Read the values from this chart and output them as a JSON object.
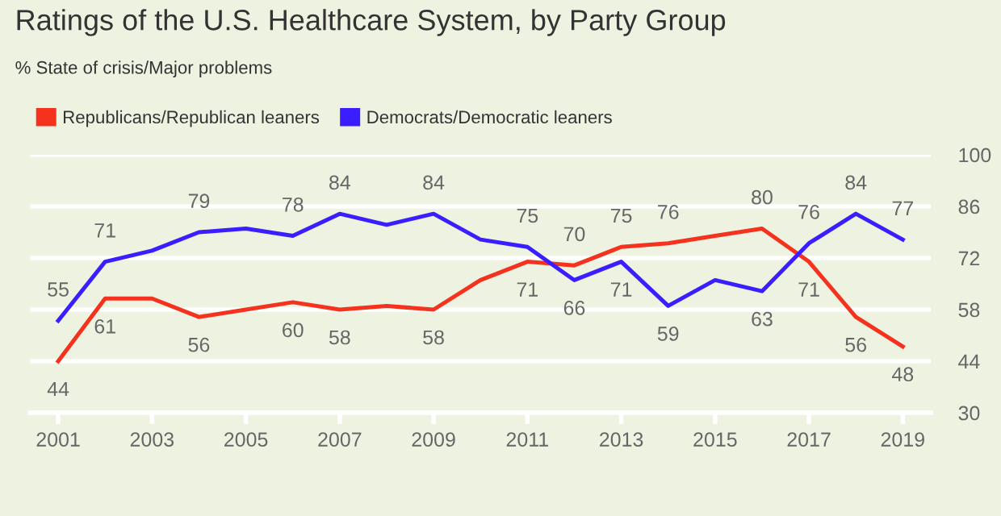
{
  "chart_data": {
    "type": "line",
    "title": "Ratings of the U.S. Healthcare System, by Party Group",
    "subtitle": "% State of crisis/Major problems",
    "x": [
      2001,
      2002,
      2003,
      2004,
      2005,
      2006,
      2007,
      2008,
      2009,
      2010,
      2011,
      2012,
      2013,
      2014,
      2015,
      2016,
      2017,
      2018,
      2019
    ],
    "series": [
      {
        "name": "Republicans/Republican leaners",
        "color": "#f5321e",
        "values": [
          44,
          61,
          61,
          56,
          58,
          60,
          58,
          59,
          58,
          66,
          71,
          70,
          75,
          76,
          78,
          80,
          71,
          56,
          48
        ],
        "value_labels": [
          "44",
          "61",
          null,
          "56",
          null,
          "60",
          "58",
          null,
          "58",
          null,
          "71",
          "70",
          "75",
          "76",
          null,
          "80",
          "71",
          "56",
          "48"
        ]
      },
      {
        "name": "Democrats/Democratic leaners",
        "color": "#3a1eff",
        "values": [
          55,
          71,
          74,
          79,
          80,
          78,
          84,
          81,
          84,
          77,
          75,
          66,
          71,
          59,
          66,
          63,
          76,
          84,
          77
        ],
        "value_labels": [
          "55",
          "71",
          null,
          "79",
          null,
          "78",
          "84",
          null,
          "84",
          null,
          "75",
          "66",
          "71",
          "59",
          null,
          "63",
          "76",
          "84",
          "77"
        ]
      }
    ],
    "xlim": [
      2000.4,
      2019.6
    ],
    "xticks": [
      2001,
      2003,
      2005,
      2007,
      2009,
      2011,
      2013,
      2015,
      2017,
      2019
    ],
    "ylim": [
      30,
      100
    ],
    "yticks": [
      30,
      44,
      58,
      72,
      86,
      100
    ],
    "grid": "y",
    "legend": "top left",
    "marker": "none",
    "line_style": "solid"
  }
}
